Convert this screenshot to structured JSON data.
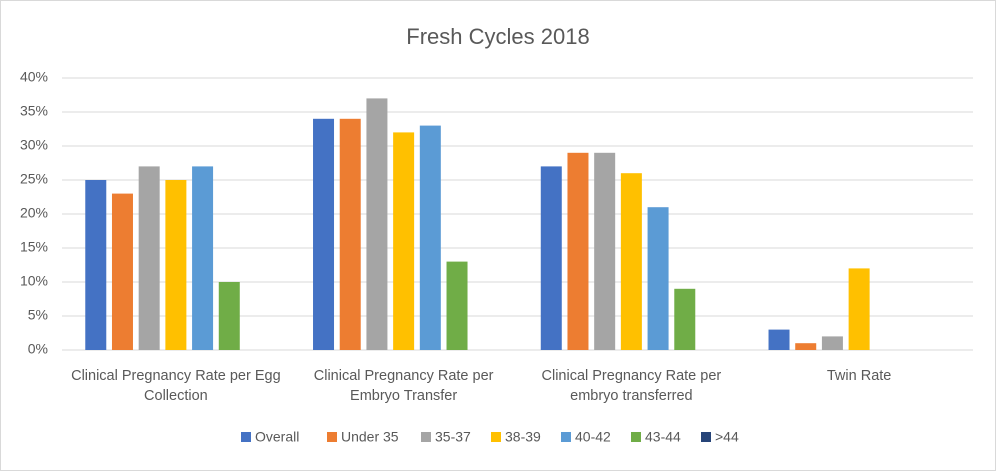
{
  "chart_data": {
    "type": "bar",
    "title": "Fresh Cycles 2018",
    "categories": [
      "Clinical Pregnancy Rate per Egg Collection",
      "Clinical Pregnancy Rate per Embryo Transfer",
      "Clinical Pregnancy Rate per embryo transferred",
      "Twin Rate"
    ],
    "series": [
      {
        "name": "Overall",
        "color": "#4472c4",
        "values": [
          25,
          34,
          27,
          3
        ]
      },
      {
        "name": "Under 35",
        "color": "#ed7d31",
        "values": [
          23,
          34,
          29,
          1
        ]
      },
      {
        "name": "35-37",
        "color": "#a5a5a5",
        "values": [
          27,
          37,
          29,
          2
        ]
      },
      {
        "name": "38-39",
        "color": "#ffc000",
        "values": [
          25,
          32,
          26,
          12
        ]
      },
      {
        "name": "40-42",
        "color": "#5b9bd5",
        "values": [
          27,
          33,
          21,
          0
        ]
      },
      {
        "name": "43-44",
        "color": "#70ad47",
        "values": [
          10,
          13,
          9,
          0
        ]
      },
      {
        "name": ">44",
        "color": "#264478",
        "values": [
          0,
          0,
          0,
          0
        ]
      }
    ],
    "ylim": [
      0,
      40
    ],
    "yticks": [
      {
        "value": 0,
        "label": "0%"
      },
      {
        "value": 5,
        "label": "5%"
      },
      {
        "value": 10,
        "label": "10%"
      },
      {
        "value": 15,
        "label": "15%"
      },
      {
        "value": 20,
        "label": "20%"
      },
      {
        "value": 25,
        "label": "25%"
      },
      {
        "value": 30,
        "label": "30%"
      },
      {
        "value": 35,
        "label": "35%"
      },
      {
        "value": 40,
        "label": "40%"
      }
    ],
    "grid": true,
    "legend": "bottom"
  }
}
